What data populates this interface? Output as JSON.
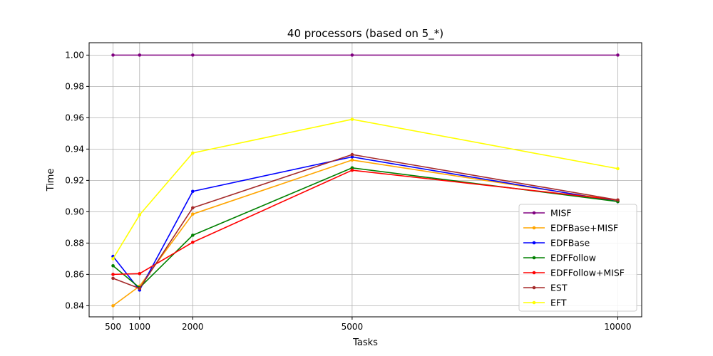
{
  "chart_data": {
    "type": "line",
    "title": "40 processors (based on 5_*)",
    "xlabel": "Tasks",
    "ylabel": "Time",
    "x": [
      500,
      1000,
      2000,
      5000,
      10000
    ],
    "x_tick_labels": [
      "500",
      "1000",
      "2000",
      "5000",
      "10000"
    ],
    "y_ticks": [
      0.84,
      0.86,
      0.88,
      0.9,
      0.92,
      0.94,
      0.96,
      0.98,
      1.0
    ],
    "y_tick_labels": [
      "0.84",
      "0.86",
      "0.88",
      "0.90",
      "0.92",
      "0.94",
      "0.96",
      "0.98",
      "1.00"
    ],
    "xlim": [
      50,
      10450
    ],
    "ylim": [
      0.8329,
      1.0079
    ],
    "grid": true,
    "legend_position": "lower-right",
    "series": [
      {
        "name": "MISF",
        "color": "#800080",
        "values": [
          1.0,
          1.0,
          1.0,
          1.0,
          1.0
        ]
      },
      {
        "name": "EDFBase+MISF",
        "color": "#FFA500",
        "values": [
          0.84,
          0.8525,
          0.8985,
          0.933,
          0.907
        ]
      },
      {
        "name": "EDFBase",
        "color": "#0000FF",
        "values": [
          0.8715,
          0.85,
          0.913,
          0.935,
          0.9065
        ]
      },
      {
        "name": "EDFFollow",
        "color": "#008000",
        "values": [
          0.8655,
          0.8515,
          0.885,
          0.928,
          0.9065
        ]
      },
      {
        "name": "EDFFollow+MISF",
        "color": "#FF0000",
        "values": [
          0.86,
          0.8605,
          0.8805,
          0.9265,
          0.9075
        ]
      },
      {
        "name": "EST",
        "color": "#A52A2A",
        "values": [
          0.8575,
          0.851,
          0.9025,
          0.9365,
          0.9075
        ]
      },
      {
        "name": "EFT",
        "color": "#FFFF00",
        "values": [
          0.87,
          0.898,
          0.9375,
          0.959,
          0.9275
        ]
      }
    ]
  }
}
